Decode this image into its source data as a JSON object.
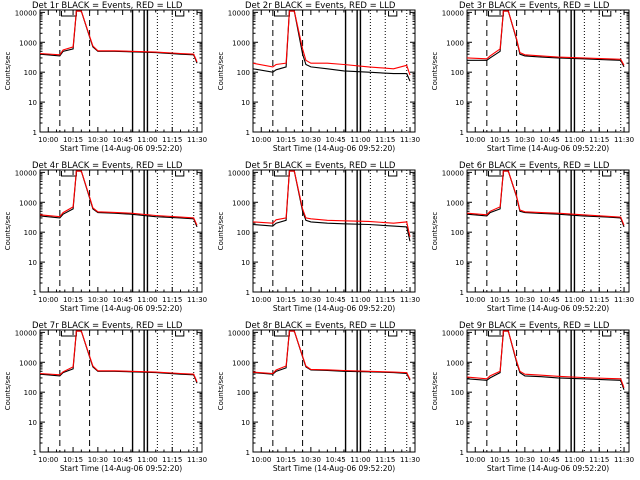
{
  "chart_data": {
    "type": "line",
    "layout": "3x3 grid",
    "x_axis": {
      "range": [
        "09:55",
        "11:33"
      ],
      "tick_labels": [
        "10:00",
        "10:15",
        "10:30",
        "10:45",
        "11:00",
        "11:15",
        "11:30"
      ],
      "label": "Start Time (14-Aug-06 09:52:20)"
    },
    "y_axis": {
      "scale": "log",
      "range": [
        1,
        12000
      ],
      "tick_labels": [
        "1",
        "10",
        "100",
        "1000",
        "10000"
      ],
      "label": "Counts/sec"
    },
    "grid": false,
    "colors": {
      "events": "#000000",
      "lld": "#ff0000"
    },
    "markers": {
      "dashed_lines": [
        "10:07",
        "10:25"
      ],
      "solid_lines": [
        "10:51",
        "10:58",
        "11:00"
      ],
      "dotted_lines": [
        "11:06",
        "11:15",
        "11:28"
      ],
      "attenuator_steps": {
        "S": [
          "10:08",
          "10:17"
        ],
        "L": [
          "11:17",
          "11:22"
        ]
      }
    },
    "panels": [
      {
        "title": "Det 1r  BLACK = Events, RED = LLD",
        "series": [
          {
            "x": [
              "09:55",
              "10:07",
              "10:09",
              "10:15",
              "10:17",
              "10:20",
              "10:25",
              "10:27",
              "10:30",
              "10:40",
              "10:50",
              "11:05",
              "11:20",
              "11:28",
              "11:30"
            ],
            "values": [
              400,
              350,
              500,
              600,
              11000,
              11000,
              1500,
              700,
              500,
              500,
              480,
              450,
              400,
              380,
              200
            ]
          },
          {
            "x": [
              "09:55",
              "10:07",
              "10:09",
              "10:15",
              "10:17",
              "10:20",
              "10:25",
              "10:27",
              "10:30",
              "10:40",
              "10:50",
              "11:05",
              "11:20",
              "11:28",
              "11:30"
            ],
            "values": [
              420,
              380,
              550,
              700,
              11000,
              11000,
              1600,
              750,
              520,
              520,
              500,
              470,
              420,
              400,
              220
            ]
          }
        ]
      },
      {
        "title": "Det 2r  BLACK = Events, RED = LLD",
        "series": [
          {
            "x": [
              "09:55",
              "10:07",
              "10:09",
              "10:15",
              "10:17",
              "10:20",
              "10:25",
              "10:27",
              "10:30",
              "10:40",
              "10:50",
              "11:05",
              "11:20",
              "11:28",
              "11:30"
            ],
            "values": [
              130,
              100,
              120,
              150,
              11000,
              11000,
              400,
              180,
              150,
              130,
              110,
              100,
              90,
              90,
              50
            ]
          },
          {
            "x": [
              "09:55",
              "10:07",
              "10:09",
              "10:15",
              "10:17",
              "10:20",
              "10:25",
              "10:27",
              "10:30",
              "10:40",
              "10:50",
              "11:05",
              "11:20",
              "11:28",
              "11:30"
            ],
            "values": [
              200,
              150,
              180,
              200,
              11000,
              11000,
              600,
              250,
              200,
              200,
              180,
              150,
              130,
              170,
              80
            ]
          }
        ]
      },
      {
        "title": "Det 3r  BLACK = Events, RED = LLD",
        "series": [
          {
            "x": [
              "09:55",
              "10:07",
              "10:09",
              "10:15",
              "10:17",
              "10:20",
              "10:25",
              "10:27",
              "10:30",
              "10:40",
              "10:50",
              "11:05",
              "11:20",
              "11:28",
              "11:30"
            ],
            "values": [
              250,
              250,
              300,
              500,
              11000,
              11000,
              1200,
              400,
              350,
              320,
              300,
              280,
              260,
              250,
              150
            ]
          },
          {
            "x": [
              "09:55",
              "10:07",
              "10:09",
              "10:15",
              "10:17",
              "10:20",
              "10:25",
              "10:27",
              "10:30",
              "10:40",
              "10:50",
              "11:05",
              "11:20",
              "11:28",
              "11:30"
            ],
            "values": [
              300,
              280,
              350,
              600,
              11000,
              11000,
              1300,
              450,
              380,
              350,
              320,
              300,
              280,
              270,
              170
            ]
          }
        ]
      },
      {
        "title": "Det 4r  BLACK = Events, RED = LLD",
        "series": [
          {
            "x": [
              "09:55",
              "10:07",
              "10:09",
              "10:15",
              "10:17",
              "10:20",
              "10:25",
              "10:27",
              "10:30",
              "10:40",
              "10:50",
              "11:05",
              "11:20",
              "11:28",
              "11:30"
            ],
            "values": [
              350,
              300,
              400,
              600,
              11000,
              11000,
              1400,
              600,
              450,
              430,
              400,
              330,
              300,
              280,
              150
            ]
          },
          {
            "x": [
              "09:55",
              "10:07",
              "10:09",
              "10:15",
              "10:17",
              "10:20",
              "10:25",
              "10:27",
              "10:30",
              "10:40",
              "10:50",
              "11:05",
              "11:20",
              "11:28",
              "11:30"
            ],
            "values": [
              380,
              330,
              450,
              700,
              11000,
              11000,
              1500,
              650,
              480,
              460,
              430,
              360,
              320,
              300,
              170
            ]
          }
        ]
      },
      {
        "title": "Det 5r  BLACK = Events, RED = LLD",
        "series": [
          {
            "x": [
              "09:55",
              "10:07",
              "10:09",
              "10:15",
              "10:17",
              "10:20",
              "10:25",
              "10:27",
              "10:30",
              "10:40",
              "10:50",
              "11:05",
              "11:20",
              "11:28",
              "11:30"
            ],
            "values": [
              180,
              160,
              200,
              250,
              11000,
              11000,
              500,
              250,
              220,
              200,
              190,
              180,
              160,
              150,
              50
            ]
          },
          {
            "x": [
              "09:55",
              "10:07",
              "10:09",
              "10:15",
              "10:17",
              "10:20",
              "10:25",
              "10:27",
              "10:30",
              "10:40",
              "10:50",
              "11:05",
              "11:20",
              "11:28",
              "11:30"
            ],
            "values": [
              220,
              200,
              260,
              300,
              11000,
              11000,
              600,
              300,
              280,
              250,
              240,
              230,
              200,
              220,
              70
            ]
          }
        ]
      },
      {
        "title": "Det 6r  BLACK = Events, RED = LLD",
        "series": [
          {
            "x": [
              "09:55",
              "10:07",
              "10:09",
              "10:15",
              "10:17",
              "10:20",
              "10:25",
              "10:27",
              "10:30",
              "10:40",
              "10:50",
              "11:05",
              "11:20",
              "11:28",
              "11:30"
            ],
            "values": [
              400,
              350,
              450,
              600,
              11000,
              11000,
              1500,
              500,
              450,
              420,
              400,
              350,
              320,
              300,
              150
            ]
          },
          {
            "x": [
              "09:55",
              "10:07",
              "10:09",
              "10:15",
              "10:17",
              "10:20",
              "10:25",
              "10:27",
              "10:30",
              "10:40",
              "10:50",
              "11:05",
              "11:20",
              "11:28",
              "11:30"
            ],
            "values": [
              430,
              380,
              500,
              700,
              11000,
              11000,
              1600,
              550,
              480,
              450,
              430,
              380,
              340,
              320,
              170
            ]
          }
        ]
      },
      {
        "title": "Det 7r  BLACK = Events, RED = LLD",
        "series": [
          {
            "x": [
              "09:55",
              "10:07",
              "10:09",
              "10:15",
              "10:17",
              "10:20",
              "10:25",
              "10:27",
              "10:30",
              "10:40",
              "10:50",
              "11:05",
              "11:20",
              "11:28",
              "11:30"
            ],
            "values": [
              400,
              350,
              450,
              600,
              11000,
              11000,
              1500,
              700,
              500,
              500,
              480,
              450,
              400,
              380,
              200
            ]
          },
          {
            "x": [
              "09:55",
              "10:07",
              "10:09",
              "10:15",
              "10:17",
              "10:20",
              "10:25",
              "10:27",
              "10:30",
              "10:40",
              "10:50",
              "11:05",
              "11:20",
              "11:28",
              "11:30"
            ],
            "values": [
              420,
              380,
              480,
              700,
              11000,
              11000,
              1600,
              750,
              520,
              520,
              500,
              470,
              420,
              400,
              220
            ]
          }
        ]
      },
      {
        "title": "Det 8r  BLACK = Events, RED = LLD",
        "series": [
          {
            "x": [
              "09:55",
              "10:07",
              "10:09",
              "10:15",
              "10:17",
              "10:20",
              "10:25",
              "10:27",
              "10:30",
              "10:40",
              "10:50",
              "11:05",
              "11:20",
              "11:28",
              "11:30"
            ],
            "values": [
              450,
              400,
              500,
              650,
              11000,
              11000,
              1500,
              700,
              550,
              530,
              500,
              480,
              450,
              420,
              250
            ]
          },
          {
            "x": [
              "09:55",
              "10:07",
              "10:09",
              "10:15",
              "10:17",
              "10:20",
              "10:25",
              "10:27",
              "10:30",
              "10:40",
              "10:50",
              "11:05",
              "11:20",
              "11:28",
              "11:30"
            ],
            "values": [
              470,
              420,
              550,
              750,
              11000,
              11000,
              1600,
              750,
              580,
              560,
              530,
              500,
              470,
              450,
              270
            ]
          }
        ]
      },
      {
        "title": "Det 9r  BLACK = Events, RED = LLD",
        "series": [
          {
            "x": [
              "09:55",
              "10:07",
              "10:09",
              "10:15",
              "10:17",
              "10:20",
              "10:25",
              "10:27",
              "10:30",
              "10:40",
              "10:50",
              "11:05",
              "11:20",
              "11:28",
              "11:30"
            ],
            "values": [
              280,
              250,
              300,
              450,
              11000,
              11000,
              1000,
              450,
              350,
              330,
              300,
              280,
              260,
              250,
              120
            ]
          },
          {
            "x": [
              "09:55",
              "10:07",
              "10:09",
              "10:15",
              "10:17",
              "10:20",
              "10:25",
              "10:27",
              "10:30",
              "10:40",
              "10:50",
              "11:05",
              "11:20",
              "11:28",
              "11:30"
            ],
            "values": [
              320,
              280,
              350,
              500,
              11000,
              11000,
              1100,
              500,
              400,
              370,
              340,
              310,
              290,
              280,
              140
            ]
          }
        ]
      }
    ]
  }
}
